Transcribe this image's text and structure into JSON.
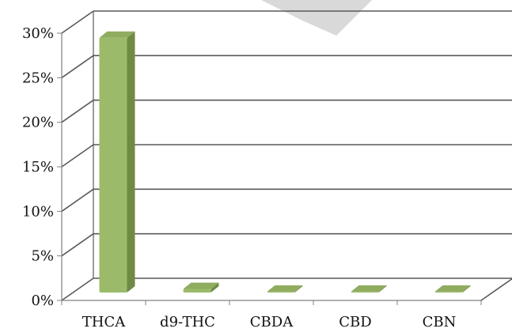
{
  "chart_data": {
    "type": "bar",
    "categories": [
      "THCA",
      "d9-THC",
      "CBDA",
      "CBD",
      "CBN"
    ],
    "values": [
      28.6,
      0.4,
      0.1,
      0.1,
      0.1
    ],
    "ylim": [
      0,
      30
    ],
    "yticks": [
      {
        "value": 0,
        "label": "0%"
      },
      {
        "value": 5,
        "label": "5%"
      },
      {
        "value": 10,
        "label": "10%"
      },
      {
        "value": 15,
        "label": "15%"
      },
      {
        "value": 20,
        "label": "20%"
      },
      {
        "value": 25,
        "label": "25%"
      },
      {
        "value": 30,
        "label": "30%"
      }
    ],
    "grid": true,
    "legend": "none",
    "three_d": true,
    "colors": {
      "bar_front": "#9bbb6b",
      "bar_side": "#6f8a45",
      "bar_top": "#8fac5f",
      "grid": "#595959",
      "wall": "#ffffff",
      "watermark": "#d9d9d9"
    }
  }
}
